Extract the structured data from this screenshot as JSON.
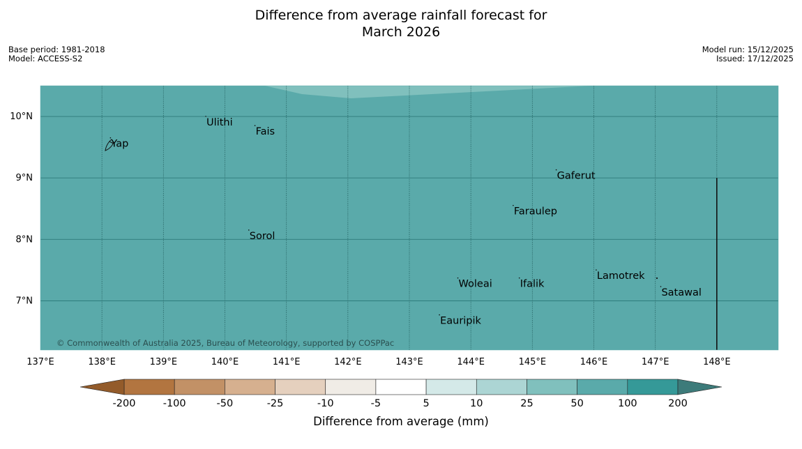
{
  "title_line1": "Difference from average rainfall forecast for",
  "title_line2": "March 2026",
  "meta_left": [
    "Base period: 1981-2018",
    "Model: ACCESS-S2"
  ],
  "meta_right": [
    "Model run: 15/12/2025",
    "Issued: 17/12/2025"
  ],
  "copyright": "© Commonwealth of Australia 2025, Bureau of Meteorology, supported by COSPPac",
  "map": {
    "lon_range": [
      137,
      149
    ],
    "lat_range": [
      6.2,
      10.5
    ],
    "lon_ticks": [
      "137°E",
      "138°E",
      "139°E",
      "140°E",
      "141°E",
      "142°E",
      "143°E",
      "144°E",
      "145°E",
      "146°E",
      "147°E",
      "148°E"
    ],
    "lat_ticks": [
      "10°N",
      "9°N",
      "8°N",
      "7°N"
    ],
    "background_color": "#5aaaaa",
    "high_anomaly_color": "#80c0bd"
  },
  "places": [
    {
      "name": "Ulithi",
      "lon": 139.7,
      "lat": 9.9
    },
    {
      "name": "Fais",
      "lon": 140.5,
      "lat": 9.75
    },
    {
      "name": "Yap",
      "lon": 138.15,
      "lat": 9.55
    },
    {
      "name": "Gaferut",
      "lon": 145.4,
      "lat": 9.03
    },
    {
      "name": "Faraulep",
      "lon": 144.7,
      "lat": 8.45
    },
    {
      "name": "Sorol",
      "lon": 140.4,
      "lat": 8.05
    },
    {
      "name": "Lamotrek",
      "lon": 146.05,
      "lat": 7.4
    },
    {
      "name": "Woleai",
      "lon": 143.8,
      "lat": 7.27
    },
    {
      "name": "Ifalik",
      "lon": 144.8,
      "lat": 7.27
    },
    {
      "name": "Satawal",
      "lon": 147.1,
      "lat": 7.13
    },
    {
      "name": "Eauripik",
      "lon": 143.5,
      "lat": 6.67
    }
  ],
  "colorbar": {
    "labels": [
      "-200",
      "-100",
      "-50",
      "-25",
      "-10",
      "-5",
      "5",
      "10",
      "25",
      "50",
      "100",
      "200"
    ],
    "colors": [
      "#b27540",
      "#c29166",
      "#d6b08f",
      "#e5d0be",
      "#f0ece6",
      "#ffffff",
      "#d4e9e8",
      "#acd5d4",
      "#80c0bd",
      "#5aaaaa",
      "#359998"
    ],
    "low_extend_color": "#935b2a",
    "high_extend_color": "#3d7b7a",
    "label": "Difference from average (mm)"
  }
}
